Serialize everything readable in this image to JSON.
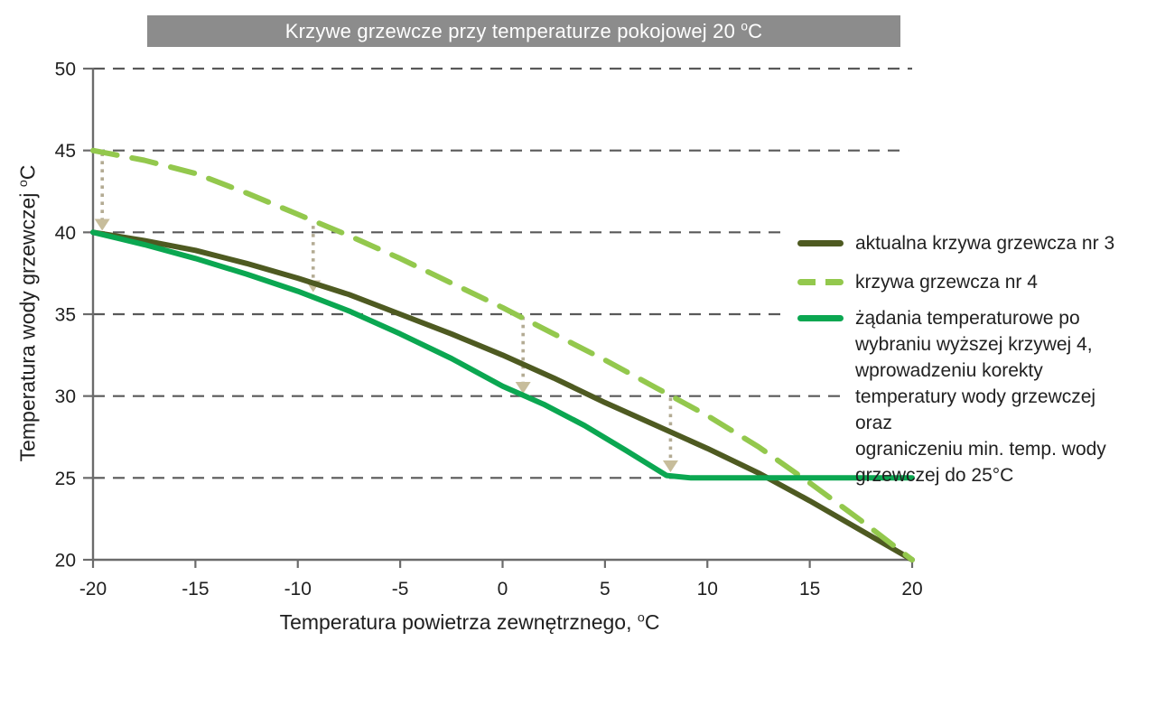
{
  "title": {
    "prefix": "Krzywe grzewcze przy temperaturze pokojowej 20 ",
    "sup": "o",
    "suffix": "C"
  },
  "axes": {
    "x_label": {
      "prefix": "Temperatura powietrza zewnętrznego, ",
      "sup": "o",
      "suffix": "C"
    },
    "y_label": {
      "prefix": "Temperatura wody grzewczej ",
      "sup": "o",
      "suffix": "C"
    }
  },
  "legend": {
    "items": [
      {
        "label": "aktualna krzywa grzewcza nr 3",
        "style": "solid",
        "color": "#4e5a21"
      },
      {
        "label": "krzywa grzewcza nr 4",
        "style": "dashed",
        "color": "#93c84d"
      },
      {
        "label": [
          "żądania temperaturowe po",
          "wybraniu wyższej krzywej 4,",
          "wprowadzeniu korekty",
          "temperatury wody grzewczej oraz",
          "ograniczeniu min. temp. wody",
          "grzewczej do 25°C"
        ],
        "style": "solid",
        "color": "#0ba751"
      }
    ]
  },
  "colors": {
    "banner_bg": "#8c8c8c",
    "banner_text": "#ffffff",
    "curve3": "#4e5a21",
    "curve4": "#93c84d",
    "curve_request": "#0ba751",
    "gridline": "#595959",
    "axis": "#6b6b6b",
    "tick_text": "#1f1f1f",
    "arrow_head": "#c7bd9b",
    "arrow_dots": "#b3ab93"
  },
  "chart_data": {
    "type": "line",
    "title": "Krzywe grzewcze przy temperaturze pokojowej 20 °C",
    "xlabel": "Temperatura powietrza zewnętrznego, °C",
    "ylabel": "Temperatura wody grzewczej °C",
    "xlim": [
      -20,
      20
    ],
    "ylim": [
      20,
      50
    ],
    "x_ticks": [
      -20,
      -15,
      -10,
      -5,
      0,
      5,
      10,
      15,
      20
    ],
    "y_ticks": [
      50,
      45,
      40,
      35,
      30,
      25,
      20
    ],
    "grid": "dashed horizontal gridlines, legend at right overlaps ends of 40/35/30 lines",
    "legend_position": "right",
    "gridlines": [
      {
        "y": 50,
        "x_end": 20.0
      },
      {
        "y": 45,
        "x_end": 19.78
      },
      {
        "y": 40,
        "x_end": 13.82
      },
      {
        "y": 35,
        "x_end": 13.69
      },
      {
        "y": 30,
        "x_end": 16.57
      },
      {
        "y": 25,
        "x_end": 20.0
      }
    ],
    "series": [
      {
        "name": "aktualna krzywa grzewcza nr 3",
        "style": "solid",
        "color": "#4e5a21",
        "points": [
          [
            -20,
            40
          ],
          [
            -17.5,
            39.5
          ],
          [
            -15,
            38.9
          ],
          [
            -12.5,
            38.1
          ],
          [
            -10,
            37.2
          ],
          [
            -7.5,
            36.2
          ],
          [
            -5,
            35.0
          ],
          [
            -2.5,
            33.8
          ],
          [
            0,
            32.5
          ],
          [
            2.5,
            31.1
          ],
          [
            5,
            29.6
          ],
          [
            7.5,
            28.2
          ],
          [
            10,
            26.8
          ],
          [
            12.5,
            25.3
          ],
          [
            15,
            23.6
          ],
          [
            17.5,
            21.8
          ],
          [
            20,
            20
          ]
        ]
      },
      {
        "name": "krzywa grzewcza nr 4",
        "style": "dashed",
        "color": "#93c84d",
        "points": [
          [
            -20,
            45
          ],
          [
            -17.5,
            44.4
          ],
          [
            -15,
            43.6
          ],
          [
            -12.5,
            42.4
          ],
          [
            -10,
            41.1
          ],
          [
            -7.5,
            39.8
          ],
          [
            -5,
            38.4
          ],
          [
            -2.5,
            36.9
          ],
          [
            0,
            35.4
          ],
          [
            2.5,
            33.8
          ],
          [
            5,
            32.2
          ],
          [
            7.5,
            30.5
          ],
          [
            10,
            28.8
          ],
          [
            12.5,
            26.9
          ],
          [
            15,
            24.7
          ],
          [
            17.5,
            22.4
          ],
          [
            20,
            20
          ]
        ]
      },
      {
        "name": "żądania temperaturowe po wybraniu wyższej krzywej 4, wprowadzeniu korekty temperatury wody grzewczej oraz ograniczeniu min. temp. wody grzewczej do 25°C",
        "style": "solid",
        "color": "#0ba751",
        "points": [
          [
            -20,
            40
          ],
          [
            -17.5,
            39.25
          ],
          [
            -15,
            38.4
          ],
          [
            -12.5,
            37.45
          ],
          [
            -10,
            36.4
          ],
          [
            -7.5,
            35.2
          ],
          [
            -5,
            33.8
          ],
          [
            -2.5,
            32.3
          ],
          [
            0,
            30.6
          ],
          [
            2,
            29.5
          ],
          [
            4,
            28.2
          ],
          [
            6,
            26.7
          ],
          [
            8,
            25.15
          ],
          [
            9.2,
            25
          ],
          [
            20,
            25
          ]
        ]
      }
    ],
    "arrows": [
      {
        "x": -19.55,
        "y_from": 44.85,
        "y_to": 40.1
      },
      {
        "x": -9.25,
        "y_from": 40.4,
        "y_to": 36.35
      },
      {
        "x": 1.0,
        "y_from": 34.85,
        "y_to": 30.15
      },
      {
        "x": 8.2,
        "y_from": 29.9,
        "y_to": 25.35
      }
    ]
  }
}
